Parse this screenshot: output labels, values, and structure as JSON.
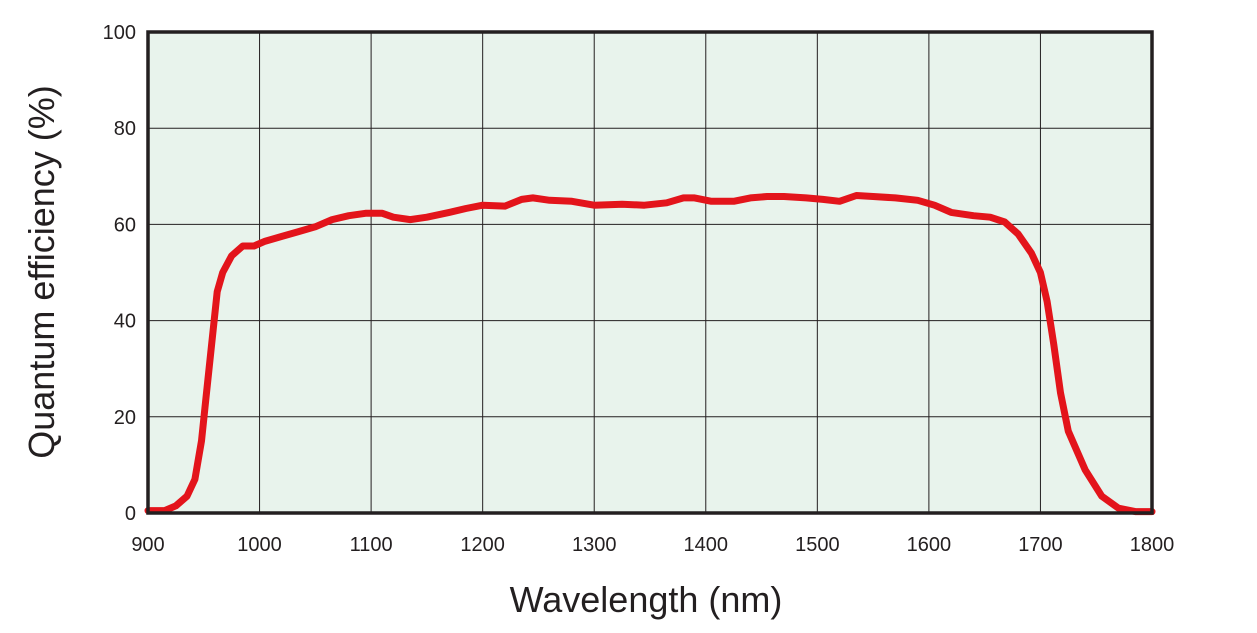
{
  "chart_data": {
    "type": "line",
    "title": "",
    "xlabel": "Wavelength (nm)",
    "ylabel": "Quantum efficiency (%)",
    "xlim": [
      900,
      1800
    ],
    "ylim": [
      0,
      100
    ],
    "xticks": [
      900,
      1000,
      1100,
      1200,
      1300,
      1400,
      1500,
      1600,
      1700,
      1800
    ],
    "yticks": [
      0,
      20,
      40,
      60,
      80,
      100
    ],
    "grid": true,
    "legend": "none",
    "colors": {
      "line": "#e3141b",
      "plot_bg": "#e8f3ec",
      "grid": "#231f20",
      "frame": "#231f20"
    },
    "series": [
      {
        "x": [
          900,
          915,
          925,
          935,
          942,
          948,
          952,
          957,
          962,
          967,
          975,
          985,
          995,
          1005,
          1020,
          1035,
          1050,
          1065,
          1080,
          1095,
          1110,
          1120,
          1135,
          1150,
          1170,
          1185,
          1200,
          1220,
          1235,
          1245,
          1260,
          1280,
          1300,
          1325,
          1345,
          1365,
          1380,
          1390,
          1405,
          1425,
          1440,
          1455,
          1470,
          1490,
          1505,
          1520,
          1535,
          1550,
          1570,
          1590,
          1605,
          1620,
          1640,
          1655,
          1668,
          1680,
          1692,
          1700,
          1706,
          1712,
          1718,
          1725,
          1740,
          1755,
          1770,
          1785,
          1800
        ],
        "y": [
          0.5,
          0.5,
          1.5,
          3.5,
          7,
          15,
          24,
          35,
          46,
          50,
          53.5,
          55.5,
          55.5,
          56.5,
          57.5,
          58.5,
          59.5,
          61,
          61.8,
          62.3,
          62.3,
          61.5,
          61,
          61.5,
          62.5,
          63.3,
          64,
          63.8,
          65.2,
          65.5,
          65,
          64.8,
          64,
          64.2,
          64,
          64.5,
          65.5,
          65.5,
          64.8,
          64.8,
          65.5,
          65.8,
          65.8,
          65.5,
          65.2,
          64.8,
          66,
          65.8,
          65.5,
          65,
          64,
          62.5,
          61.8,
          61.5,
          60.5,
          58,
          54,
          50,
          44,
          35,
          25,
          17,
          9,
          3.5,
          1,
          0.3,
          0.3
        ]
      }
    ]
  }
}
